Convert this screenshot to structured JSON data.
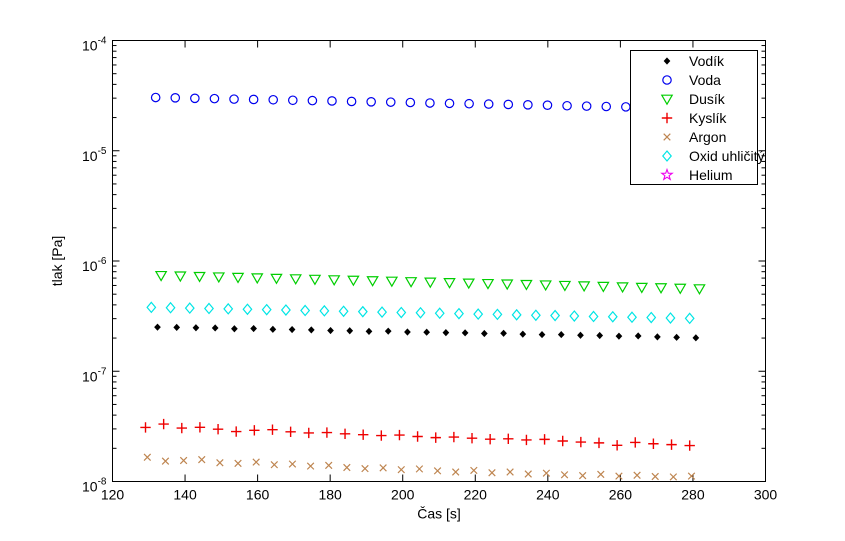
{
  "figure": {
    "background": "#ffffff",
    "axis_color": "#000000"
  },
  "chart_data": {
    "type": "scatter",
    "title": "",
    "xlabel": "Čas [s]",
    "ylabel": "tlak [Pa]",
    "xlim": [
      120,
      300
    ],
    "x_ticks": [
      120,
      140,
      160,
      180,
      200,
      220,
      240,
      260,
      280,
      300
    ],
    "y_scale": "log",
    "ylim": [
      1e-08,
      0.0001
    ],
    "y_tick_base": "10",
    "y_tick_exponents": [
      -4,
      -5,
      -6,
      -7,
      -8
    ],
    "grid": false,
    "legend": {
      "position": "northeast",
      "border": "#000000",
      "background": "#ffffff"
    },
    "series": [
      {
        "id": "vodik",
        "name": "Vodík",
        "marker": "point",
        "color": "#000000",
        "x": [
          132.4,
          137.7,
          143.0,
          148.3,
          153.6,
          158.9,
          164.2,
          169.5,
          174.8,
          180.1,
          185.4,
          190.7,
          196.0,
          201.3,
          206.6,
          211.9,
          217.2,
          222.5,
          227.8,
          233.1,
          238.4,
          243.7,
          249.0,
          254.3,
          259.6,
          264.9,
          270.2,
          275.5,
          280.8
        ],
        "y": [
          2.51e-07,
          2.5e-07,
          2.48e-07,
          2.47e-07,
          2.43e-07,
          2.44e-07,
          2.4e-07,
          2.39e-07,
          2.37e-07,
          2.34e-07,
          2.33e-07,
          2.3e-07,
          2.31e-07,
          2.27e-07,
          2.26e-07,
          2.24e-07,
          2.23e-07,
          2.2e-07,
          2.21e-07,
          2.17e-07,
          2.15e-07,
          2.15e-07,
          2.12e-07,
          2.11e-07,
          2.08e-07,
          2.09e-07,
          2.05e-07,
          2.03e-07,
          2.01e-07
        ]
      },
      {
        "id": "voda",
        "name": "Voda",
        "marker": "circle",
        "color": "#0000EE",
        "x": [
          131.9,
          137.3,
          142.7,
          148.1,
          153.5,
          158.9,
          164.3,
          169.7,
          175.1,
          180.5,
          185.9,
          191.3,
          196.7,
          202.1,
          207.5,
          212.9,
          218.3,
          223.7,
          229.1,
          234.5,
          239.9,
          245.3,
          250.7,
          256.1,
          261.5,
          266.9,
          272.3,
          277.7
        ],
        "y": [
          3.04e-05,
          3.02e-05,
          2.99e-05,
          2.97e-05,
          2.94e-05,
          2.92e-05,
          2.9e-05,
          2.87e-05,
          2.85e-05,
          2.83e-05,
          2.8e-05,
          2.78e-05,
          2.76e-05,
          2.74e-05,
          2.71e-05,
          2.69e-05,
          2.67e-05,
          2.65e-05,
          2.63e-05,
          2.61e-05,
          2.59e-05,
          2.56e-05,
          2.54e-05,
          2.52e-05,
          2.5e-05,
          2.48e-05,
          2.46e-05,
          2.44e-05
        ]
      },
      {
        "id": "dusik",
        "name": "Dusík",
        "marker": "triangle-down",
        "color": "#00CE00",
        "x": [
          133.4,
          138.7,
          144.0,
          149.3,
          154.6,
          159.9,
          165.2,
          170.5,
          175.8,
          181.1,
          186.4,
          191.7,
          197.0,
          202.3,
          207.6,
          212.9,
          218.2,
          223.5,
          228.8,
          234.1,
          239.4,
          244.7,
          250.0,
          255.3,
          260.6,
          265.9,
          271.2,
          276.5,
          281.8
        ],
        "y": [
          7.41e-07,
          7.34e-07,
          7.27e-07,
          7.2e-07,
          7.13e-07,
          7.06e-07,
          6.99e-07,
          6.92e-07,
          6.85e-07,
          6.78e-07,
          6.72e-07,
          6.65e-07,
          6.59e-07,
          6.52e-07,
          6.46e-07,
          6.39e-07,
          6.33e-07,
          6.27e-07,
          6.21e-07,
          6.15e-07,
          6.09e-07,
          6.03e-07,
          5.97e-07,
          5.91e-07,
          5.85e-07,
          5.79e-07,
          5.74e-07,
          5.68e-07,
          5.62e-07
        ]
      },
      {
        "id": "kyslik",
        "name": "Kyslík",
        "marker": "plus",
        "color": "#EE0000",
        "x": [
          129.1,
          134.1,
          139.1,
          144.1,
          149.1,
          154.1,
          159.1,
          164.1,
          169.1,
          174.1,
          179.1,
          184.1,
          189.1,
          194.1,
          199.1,
          204.1,
          209.1,
          214.1,
          219.1,
          224.1,
          229.1,
          234.1,
          239.1,
          244.1,
          249.1,
          254.1,
          259.1,
          264.1,
          269.1,
          274.1,
          279.1
        ],
        "y": [
          3.09e-08,
          3.32e-08,
          3.05e-08,
          3.1e-08,
          2.98e-08,
          2.84e-08,
          2.91e-08,
          2.95e-08,
          2.82e-08,
          2.76e-08,
          2.78e-08,
          2.71e-08,
          2.66e-08,
          2.61e-08,
          2.64e-08,
          2.56e-08,
          2.5e-08,
          2.53e-08,
          2.47e-08,
          2.42e-08,
          2.44e-08,
          2.38e-08,
          2.41e-08,
          2.33e-08,
          2.28e-08,
          2.24e-08,
          2.13e-08,
          2.26e-08,
          2.2e-08,
          2.16e-08,
          2.12e-08
        ]
      },
      {
        "id": "argon",
        "name": "Argon",
        "marker": "x",
        "color": "#BE8550",
        "x": [
          129.6,
          134.6,
          139.6,
          144.6,
          149.6,
          154.6,
          159.6,
          164.6,
          169.6,
          174.6,
          179.6,
          184.6,
          189.6,
          194.6,
          199.6,
          204.6,
          209.6,
          214.6,
          219.6,
          224.6,
          229.6,
          234.6,
          239.6,
          244.6,
          249.6,
          254.6,
          259.6,
          264.6,
          269.6,
          274.6,
          279.6
        ],
        "y": [
          1.66e-08,
          1.53e-08,
          1.55e-08,
          1.58e-08,
          1.48e-08,
          1.46e-08,
          1.5e-08,
          1.42e-08,
          1.44e-08,
          1.38e-08,
          1.4e-08,
          1.34e-08,
          1.31e-08,
          1.33e-08,
          1.28e-08,
          1.3e-08,
          1.25e-08,
          1.22e-08,
          1.26e-08,
          1.2e-08,
          1.22e-08,
          1.17e-08,
          1.19e-08,
          1.15e-08,
          1.13e-08,
          1.16e-08,
          1.12e-08,
          1.14e-08,
          1.11e-08,
          1.1e-08,
          1.12e-08
        ]
      },
      {
        "id": "oxid-uhlicity",
        "name": "Oxid uhličitý",
        "marker": "diamond",
        "color": "#00E5E5",
        "x": [
          130.7,
          136.0,
          141.3,
          146.6,
          151.9,
          157.2,
          162.5,
          167.8,
          173.1,
          178.4,
          183.7,
          189.0,
          194.3,
          199.6,
          204.9,
          210.2,
          215.5,
          220.8,
          226.1,
          231.4,
          236.7,
          242.0,
          247.3,
          252.6,
          257.9,
          263.2,
          268.5,
          273.8,
          279.1
        ],
        "y": [
          3.8e-07,
          3.77e-07,
          3.74e-07,
          3.71e-07,
          3.68e-07,
          3.65e-07,
          3.62e-07,
          3.59e-07,
          3.56e-07,
          3.53e-07,
          3.5e-07,
          3.47e-07,
          3.44e-07,
          3.41e-07,
          3.39e-07,
          3.36e-07,
          3.33e-07,
          3.3e-07,
          3.28e-07,
          3.25e-07,
          3.22e-07,
          3.2e-07,
          3.17e-07,
          3.14e-07,
          3.12e-07,
          3.09e-07,
          3.07e-07,
          3.04e-07,
          3.02e-07
        ]
      },
      {
        "id": "helium",
        "name": "Helium",
        "marker": "pentagram",
        "color": "#EE00EE",
        "x": [],
        "y": []
      }
    ]
  }
}
